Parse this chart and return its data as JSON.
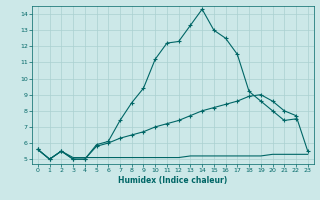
{
  "xlabel": "Humidex (Indice chaleur)",
  "bg_color": "#cce8e8",
  "grid_color": "#aad0d0",
  "line_color": "#006666",
  "xlim": [
    -0.5,
    23.5
  ],
  "ylim": [
    4.7,
    14.5
  ],
  "x_ticks": [
    0,
    1,
    2,
    3,
    4,
    5,
    6,
    7,
    8,
    9,
    10,
    11,
    12,
    13,
    14,
    15,
    16,
    17,
    18,
    19,
    20,
    21,
    22,
    23
  ],
  "y_ticks": [
    5,
    6,
    7,
    8,
    9,
    10,
    11,
    12,
    13,
    14
  ],
  "series1_x": [
    0,
    1,
    2,
    3,
    4,
    5,
    6,
    7,
    8,
    9,
    10,
    11,
    12,
    13,
    14,
    15,
    16,
    17,
    18,
    19,
    20,
    21,
    22
  ],
  "series1_y": [
    5.6,
    5.0,
    5.5,
    5.0,
    5.0,
    5.9,
    6.1,
    7.4,
    8.5,
    9.4,
    11.2,
    12.2,
    12.3,
    13.3,
    14.3,
    13.0,
    12.5,
    11.5,
    9.2,
    8.6,
    8.0,
    7.4,
    7.5
  ],
  "series2_x": [
    0,
    1,
    2,
    3,
    4,
    5,
    6,
    7,
    8,
    9,
    10,
    11,
    12,
    13,
    14,
    15,
    16,
    17,
    18,
    19,
    20,
    21,
    22,
    23
  ],
  "series2_y": [
    5.6,
    5.0,
    5.5,
    5.0,
    5.0,
    5.8,
    6.0,
    6.3,
    6.5,
    6.7,
    7.0,
    7.2,
    7.4,
    7.7,
    8.0,
    8.2,
    8.4,
    8.6,
    8.9,
    9.0,
    8.6,
    8.0,
    7.7,
    5.5
  ],
  "series3_x": [
    0,
    1,
    2,
    3,
    4,
    5,
    6,
    7,
    8,
    9,
    10,
    11,
    12,
    13,
    14,
    15,
    16,
    17,
    18,
    19,
    20,
    21,
    22,
    23
  ],
  "series3_y": [
    5.6,
    5.0,
    5.5,
    5.1,
    5.1,
    5.1,
    5.1,
    5.1,
    5.1,
    5.1,
    5.1,
    5.1,
    5.1,
    5.2,
    5.2,
    5.2,
    5.2,
    5.2,
    5.2,
    5.2,
    5.3,
    5.3,
    5.3,
    5.3
  ]
}
